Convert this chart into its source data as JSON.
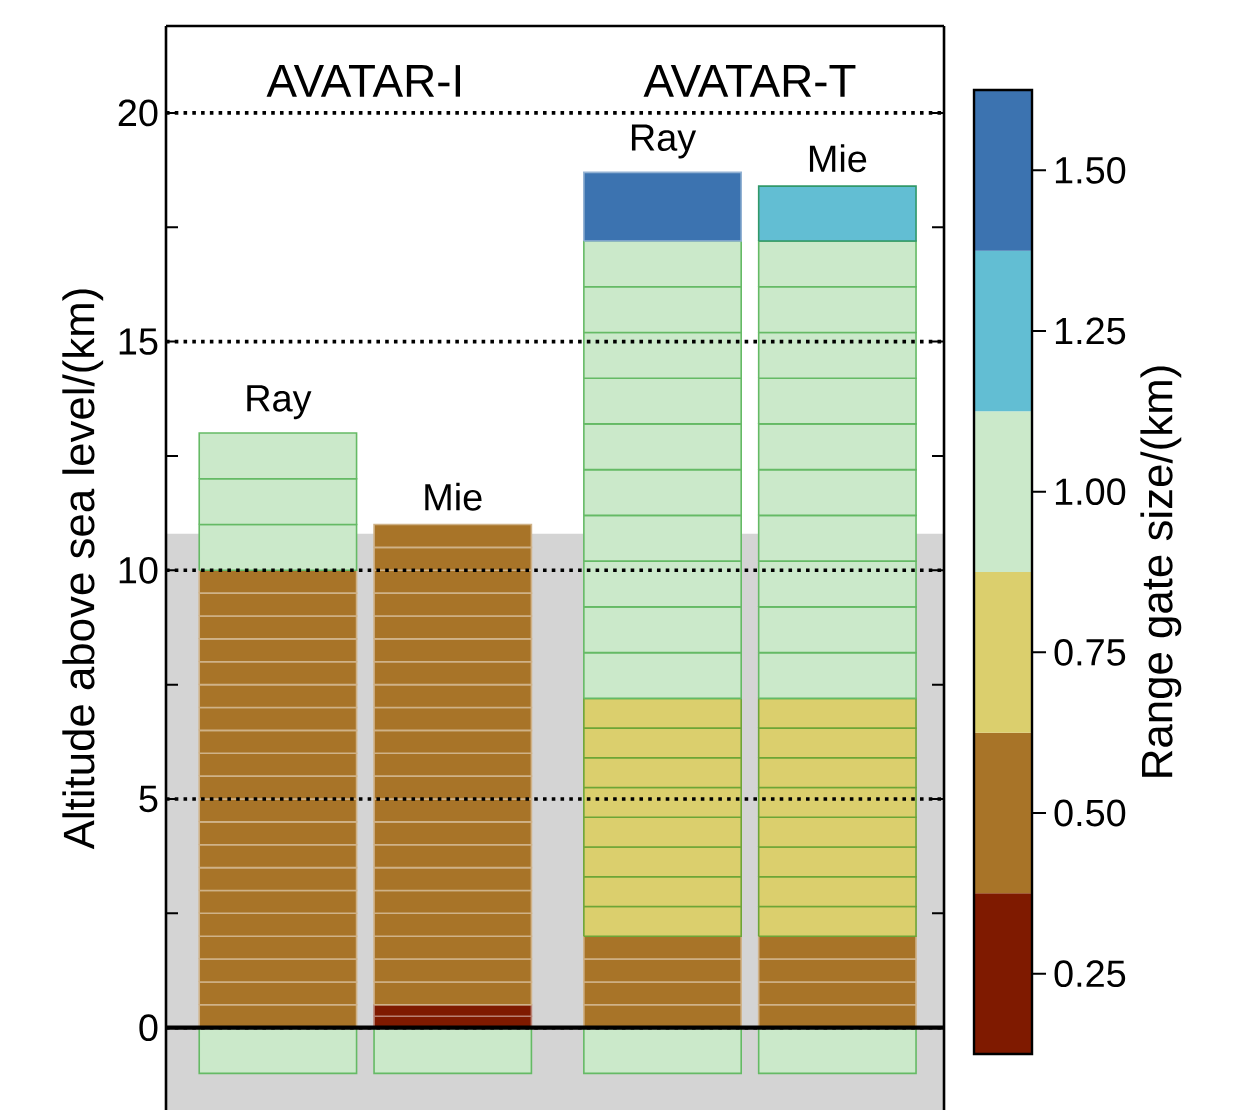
{
  "chart_data": {
    "type": "bar",
    "stacked": true,
    "categories": [
      "Ray",
      "Mie",
      "Ray",
      "Mie"
    ],
    "annotations": [
      "AVATAR-I",
      "AVATAR-T"
    ],
    "ylabel": "Altitude above sea level/(km)",
    "ylim": [
      -1.8,
      21.9
    ],
    "yticks": [
      0,
      5,
      10,
      15,
      20,
      {
        "value": 2.5,
        "label": null
      },
      {
        "value": 7.5,
        "label": null
      },
      {
        "value": 12.5,
        "label": null
      },
      {
        "value": 17.5,
        "label": null
      }
    ],
    "grid": "y",
    "bands": [
      {
        "axis": "y",
        "from": -1.8,
        "to": 10.8,
        "color": "#d4d4d4"
      }
    ],
    "ref_lines": [
      {
        "axis": "y",
        "value": 0,
        "color": "#000000"
      }
    ],
    "clabel": "Range gate size/(km)",
    "clim": [
      0.125,
      1.625
    ],
    "cticks": [
      0.25,
      {
        "value": 0.5,
        "label": "0.50"
      },
      0.75,
      {
        "value": 1.0,
        "label": "1.00"
      },
      1.25,
      {
        "value": 1.5,
        "label": "1.50"
      }
    ],
    "series": [
      {
        "values": [
          -1,
          -1,
          -1,
          -1
        ],
        "colors": [
          "#cbe9ca",
          "#cbe9ca",
          "#cbe9ca",
          "#cbe9ca"
        ]
      },
      {
        "values": [
          0.5,
          0.25,
          0.5,
          0.5
        ],
        "colors": [
          "#a87428",
          "#7f1a00",
          "#a87428",
          "#a87428"
        ]
      },
      {
        "values": [
          0.5,
          0.25,
          0.5,
          0.5
        ],
        "colors": [
          "#a87428",
          "#7f1a00",
          "#a87428",
          "#a87428"
        ]
      },
      {
        "values": [
          0.5,
          0.5,
          0.5,
          0.5
        ],
        "colors": [
          "#a87428",
          "#a87428",
          "#a87428",
          "#a87428"
        ]
      },
      {
        "values": [
          0.5,
          0.5,
          0.5,
          0.5
        ],
        "colors": [
          "#a87428",
          "#a87428",
          "#a87428",
          "#a87428"
        ]
      },
      {
        "values": [
          0.5,
          0.5,
          0.65,
          0.65
        ],
        "colors": [
          "#a87428",
          "#a87428",
          "#dbcf6d",
          "#dbcf6d"
        ]
      },
      {
        "values": [
          0.5,
          0.5,
          0.65,
          0.65
        ],
        "colors": [
          "#a87428",
          "#a87428",
          "#dbcf6d",
          "#dbcf6d"
        ]
      },
      {
        "values": [
          0.5,
          0.5,
          0.65,
          0.65
        ],
        "colors": [
          "#a87428",
          "#a87428",
          "#dbcf6d",
          "#dbcf6d"
        ]
      },
      {
        "values": [
          0.5,
          0.5,
          0.65,
          0.65
        ],
        "colors": [
          "#a87428",
          "#a87428",
          "#dbcf6d",
          "#dbcf6d"
        ]
      },
      {
        "values": [
          0.5,
          0.5,
          0.65,
          0.65
        ],
        "colors": [
          "#a87428",
          "#a87428",
          "#dbcf6d",
          "#dbcf6d"
        ]
      },
      {
        "values": [
          0.5,
          0.5,
          0.65,
          0.65
        ],
        "colors": [
          "#a87428",
          "#a87428",
          "#dbcf6d",
          "#dbcf6d"
        ]
      },
      {
        "values": [
          0.5,
          0.5,
          0.65,
          0.65
        ],
        "colors": [
          "#a87428",
          "#a87428",
          "#dbcf6d",
          "#dbcf6d"
        ]
      },
      {
        "values": [
          0.5,
          0.5,
          0.65,
          0.65
        ],
        "colors": [
          "#a87428",
          "#a87428",
          "#dbcf6d",
          "#dbcf6d"
        ]
      },
      {
        "values": [
          0.5,
          0.5,
          1,
          1
        ],
        "colors": [
          "#a87428",
          "#a87428",
          "#cbe9ca",
          "#cbe9ca"
        ]
      },
      {
        "values": [
          0.5,
          0.5,
          1,
          1
        ],
        "colors": [
          "#a87428",
          "#a87428",
          "#cbe9ca",
          "#cbe9ca"
        ]
      },
      {
        "values": [
          0.5,
          0.5,
          1,
          1
        ],
        "colors": [
          "#a87428",
          "#a87428",
          "#cbe9ca",
          "#cbe9ca"
        ]
      },
      {
        "values": [
          0.5,
          0.5,
          1,
          1
        ],
        "colors": [
          "#a87428",
          "#a87428",
          "#cbe9ca",
          "#cbe9ca"
        ]
      },
      {
        "values": [
          0.5,
          0.5,
          1,
          1
        ],
        "colors": [
          "#a87428",
          "#a87428",
          "#cbe9ca",
          "#cbe9ca"
        ]
      },
      {
        "values": [
          0.5,
          0.5,
          1,
          1
        ],
        "colors": [
          "#a87428",
          "#a87428",
          "#cbe9ca",
          "#cbe9ca"
        ]
      },
      {
        "values": [
          0.5,
          0.5,
          1,
          1
        ],
        "colors": [
          "#a87428",
          "#a87428",
          "#cbe9ca",
          "#cbe9ca"
        ]
      },
      {
        "values": [
          0.5,
          0.5,
          1,
          1
        ],
        "colors": [
          "#a87428",
          "#a87428",
          "#cbe9ca",
          "#cbe9ca"
        ]
      },
      {
        "values": [
          1,
          0.5,
          1,
          1
        ],
        "colors": [
          "#cbe9ca",
          "#a87428",
          "#cbe9ca",
          "#cbe9ca"
        ]
      },
      {
        "values": [
          1,
          0.5,
          1,
          1
        ],
        "colors": [
          "#cbe9ca",
          "#a87428",
          "#cbe9ca",
          "#cbe9ca"
        ]
      },
      {
        "values": [
          1,
          0.5,
          1.5,
          1.2
        ],
        "colors": [
          "#cbe9ca",
          "#a87428",
          "#3c73b0",
          "#62bed3"
        ]
      }
    ]
  }
}
